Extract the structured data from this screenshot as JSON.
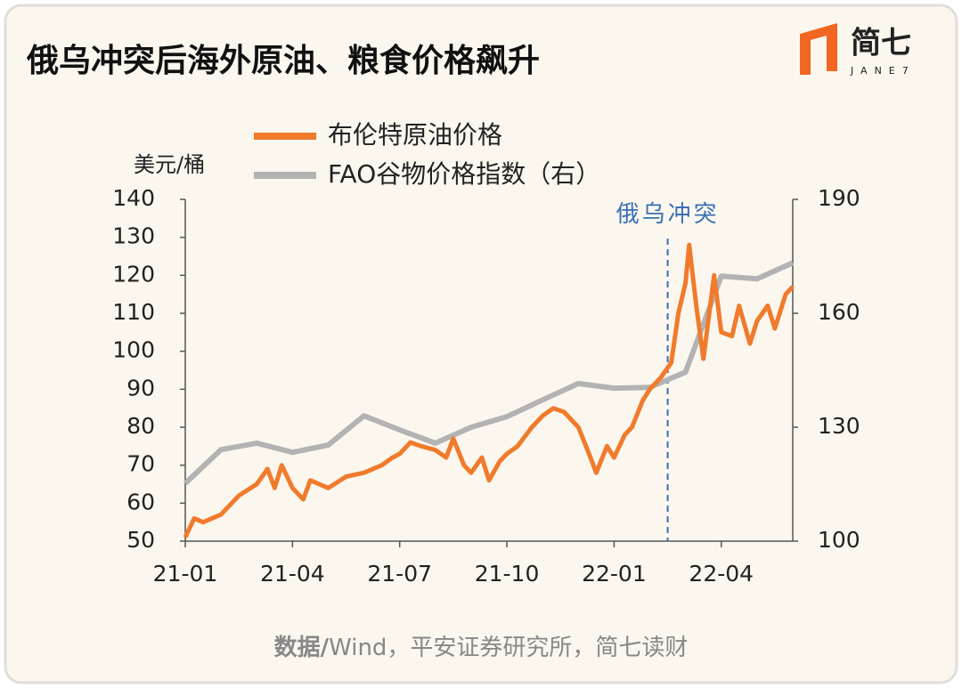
{
  "title": "俄乌冲突后海外原油、粮食价格飙升",
  "logo": {
    "text": "简七",
    "sub": "JANE7"
  },
  "source": {
    "label": "数据/",
    "text": "Wind，平安证券研究所，简七读财"
  },
  "chart_data": {
    "type": "line",
    "y_label": "美元/桶",
    "xlim": [
      0,
      17
    ],
    "xticks": [
      {
        "value": 0,
        "label": "21-01"
      },
      {
        "value": 3,
        "label": "21-04"
      },
      {
        "value": 6,
        "label": "21-07"
      },
      {
        "value": 9,
        "label": "21-10"
      },
      {
        "value": 12,
        "label": "22-01"
      },
      {
        "value": 15,
        "label": "22-04"
      }
    ],
    "ylim": [
      50,
      140
    ],
    "yticks": [
      50,
      60,
      70,
      80,
      90,
      100,
      110,
      120,
      130,
      140
    ],
    "y2lim": [
      100,
      190
    ],
    "y2ticks": [
      100,
      130,
      160,
      190
    ],
    "annotation": {
      "text": "俄乌冲突",
      "x": 13.5
    },
    "series": [
      {
        "name": "布伦特原油价格",
        "color": "#f07b2c",
        "x": [
          0,
          0.25,
          0.5,
          1,
          1.5,
          2,
          2.3,
          2.5,
          2.7,
          3,
          3.3,
          3.5,
          4,
          4.5,
          5,
          5.5,
          5.8,
          6,
          6.3,
          6.6,
          7,
          7.3,
          7.5,
          7.8,
          8,
          8.3,
          8.5,
          8.8,
          9,
          9.3,
          9.7,
          10,
          10.3,
          10.6,
          11,
          11.3,
          11.5,
          11.8,
          12,
          12.3,
          12.5,
          12.8,
          13,
          13.3,
          13.6,
          13.8,
          14,
          14.1,
          14.3,
          14.5,
          14.8,
          15,
          15.3,
          15.5,
          15.8,
          16,
          16.3,
          16.5,
          16.8,
          17
        ],
        "values": [
          51,
          56,
          55,
          57,
          62,
          65,
          69,
          64,
          70,
          64,
          61,
          66,
          64,
          67,
          68,
          70,
          72,
          73,
          76,
          75,
          74,
          72,
          77,
          70,
          68,
          72,
          66,
          71,
          73,
          75,
          80,
          83,
          85,
          84,
          80,
          73,
          68,
          75,
          72,
          78,
          80,
          87,
          90,
          93,
          97,
          110,
          118,
          128,
          112,
          98,
          120,
          105,
          104,
          112,
          102,
          108,
          112,
          106,
          115,
          117
        ]
      },
      {
        "name": "FAO谷物价格指数（右）",
        "color": "#b3b3b3",
        "axis": "y2",
        "x": [
          0,
          1,
          2,
          3,
          4,
          5,
          6,
          7,
          8,
          9,
          10,
          11,
          12,
          13,
          14,
          15,
          16,
          17
        ],
        "values": [
          115.2,
          124.1,
          125.8,
          123.4,
          125.3,
          133,
          129.3,
          125.8,
          130,
          132.8,
          137.2,
          141.5,
          140.3,
          140.5,
          144.5,
          169.8,
          169.1,
          173.3
        ]
      }
    ]
  }
}
